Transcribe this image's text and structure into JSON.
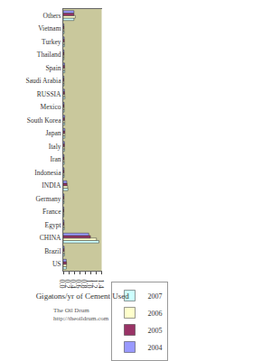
{
  "chart_data": {
    "type": "bar",
    "orientation": "horizontal",
    "xlabel": "Gigatons/yr of Cement Used",
    "annotations": [
      "The Oil Drum",
      "http://theoildrum.com"
    ],
    "categories": [
      "US",
      "Brazil",
      "CHINA",
      "Egypt",
      "France",
      "Germany",
      "INDIA",
      "Indonesia",
      "Iran",
      "Italy",
      "Japan",
      "South Korea",
      "Mexico",
      "RUSSIA",
      "Saudi Arabia",
      "Spain",
      "Thailand",
      "Turkey",
      "Vietnam",
      "Others"
    ],
    "series": [
      {
        "name": "2007",
        "color": "#ccffff",
        "values": [
          0.11,
          0.045,
          1.3,
          0.04,
          0.023,
          0.029,
          0.17,
          0.035,
          0.04,
          0.047,
          0.058,
          0.055,
          0.037,
          0.06,
          0.03,
          0.056,
          0.028,
          0.043,
          0.035,
          0.39
        ]
      },
      {
        "name": "2006",
        "color": "#ffffcc",
        "values": [
          0.12,
          0.041,
          1.21,
          0.035,
          0.023,
          0.029,
          0.16,
          0.032,
          0.035,
          0.047,
          0.06,
          0.055,
          0.036,
          0.055,
          0.03,
          0.055,
          0.03,
          0.043,
          0.03,
          0.44
        ]
      },
      {
        "name": "2005",
        "color": "#993366",
        "values": [
          0.12,
          0.037,
          0.99,
          0.03,
          0.022,
          0.027,
          0.14,
          0.033,
          0.033,
          0.046,
          0.06,
          0.05,
          0.033,
          0.05,
          0.027,
          0.052,
          0.03,
          0.04,
          0.028,
          0.39
        ]
      },
      {
        "name": "2004",
        "color": "#9999ff",
        "values": [
          0.11,
          0.035,
          0.93,
          0.03,
          0.022,
          0.029,
          0.13,
          0.03,
          0.03,
          0.045,
          0.06,
          0.055,
          0.032,
          0.045,
          0.025,
          0.05,
          0.03,
          0.036,
          0.025,
          0.39
        ]
      }
    ],
    "xlim": [
      0,
      1.4
    ],
    "xticks": [
      {
        "value": 0,
        "label": "0.0"
      },
      0.2,
      0.4,
      0.6,
      0.8,
      {
        "value": 1,
        "label": "1.0"
      },
      1.2,
      1.4
    ],
    "grid": false,
    "legend": "bottom"
  }
}
